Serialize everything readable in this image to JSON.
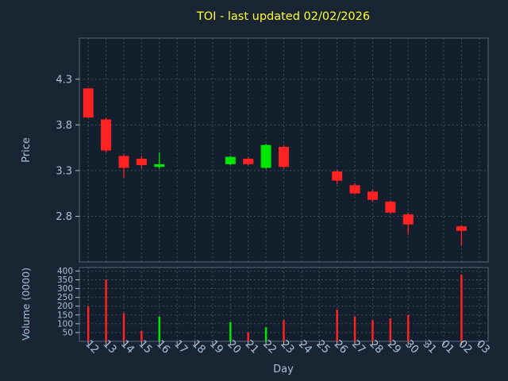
{
  "chart_data": {
    "type": "candlestick",
    "title": "TOI - last updated 02/02/2026",
    "xlabel": "Day",
    "ylabel_price": "Price",
    "ylabel_volume": "Volume (0000)",
    "days": [
      "12",
      "13",
      "14",
      "15",
      "16",
      "17",
      "18",
      "19",
      "20",
      "21",
      "22",
      "23",
      "24",
      "25",
      "26",
      "27",
      "28",
      "29",
      "30",
      "31",
      "01",
      "02",
      "03"
    ],
    "price_ticks": [
      2.8,
      3.3,
      3.8,
      4.3
    ],
    "volume_ticks": [
      50,
      100,
      150,
      200,
      250,
      300,
      350,
      400
    ],
    "price_ylim": [
      2.3,
      4.75
    ],
    "volume_ylim": [
      0,
      420
    ],
    "candles": [
      {
        "day": "12",
        "open": 4.2,
        "high": 4.2,
        "low": 3.88,
        "close": 3.88,
        "volume": 200
      },
      {
        "day": "13",
        "open": 3.86,
        "high": 3.88,
        "low": 3.5,
        "close": 3.52,
        "volume": 350
      },
      {
        "day": "14",
        "open": 3.46,
        "high": 3.48,
        "low": 3.22,
        "close": 3.33,
        "volume": 160
      },
      {
        "day": "15",
        "open": 3.43,
        "high": 3.46,
        "low": 3.32,
        "close": 3.36,
        "volume": 60
      },
      {
        "day": "16",
        "open": 3.34,
        "high": 3.5,
        "low": 3.32,
        "close": 3.37,
        "volume": 140
      },
      {
        "day": "20",
        "open": 3.37,
        "high": 3.46,
        "low": 3.36,
        "close": 3.45,
        "volume": 110
      },
      {
        "day": "21",
        "open": 3.43,
        "high": 3.45,
        "low": 3.36,
        "close": 3.37,
        "volume": 50
      },
      {
        "day": "22",
        "open": 3.33,
        "high": 3.59,
        "low": 3.32,
        "close": 3.58,
        "volume": 80
      },
      {
        "day": "23",
        "open": 3.56,
        "high": 3.58,
        "low": 3.32,
        "close": 3.34,
        "volume": 120
      },
      {
        "day": "26",
        "open": 3.29,
        "high": 3.31,
        "low": 3.15,
        "close": 3.19,
        "volume": 180
      },
      {
        "day": "27",
        "open": 3.14,
        "high": 3.16,
        "low": 3.04,
        "close": 3.05,
        "volume": 140
      },
      {
        "day": "28",
        "open": 3.07,
        "high": 3.09,
        "low": 2.96,
        "close": 2.98,
        "volume": 120
      },
      {
        "day": "29",
        "open": 2.96,
        "high": 2.97,
        "low": 2.83,
        "close": 2.84,
        "volume": 130
      },
      {
        "day": "30",
        "open": 2.82,
        "high": 2.84,
        "low": 2.6,
        "close": 2.71,
        "volume": 150
      },
      {
        "day": "02",
        "open": 2.69,
        "high": 2.7,
        "low": 2.48,
        "close": 2.64,
        "volume": 380
      }
    ],
    "colors": {
      "figure_bg": "#1a2533",
      "axes_bg": "#131f2d",
      "grid": "#4e5f70",
      "spine": "#56687a",
      "tick_text": "#a9c0d8",
      "title_text": "#ffff33",
      "up": "#00e600",
      "down": "#ff2222"
    }
  }
}
